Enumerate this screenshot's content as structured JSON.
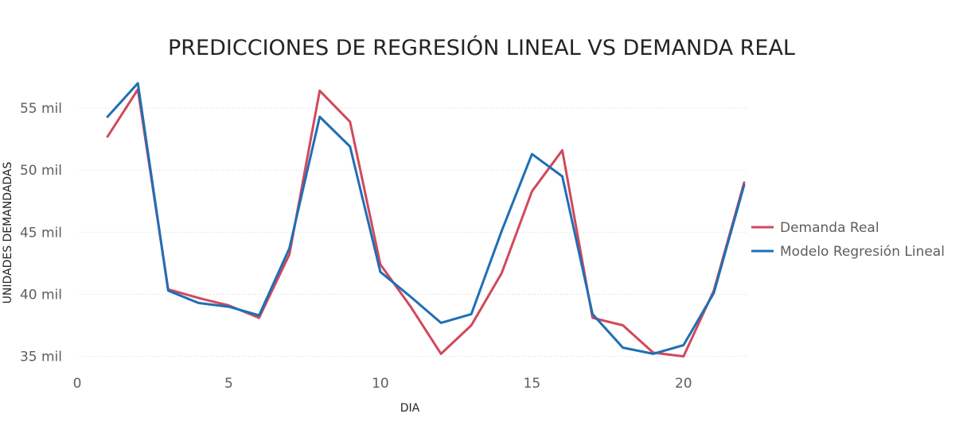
{
  "chart_data": {
    "type": "line",
    "title": "PREDICCIONES DE REGRESIÓN LINEAL VS DEMANDA REAL",
    "xlabel": "DIA",
    "ylabel": "UNIDADES DEMANDADAS",
    "x": [
      1,
      2,
      3,
      4,
      5,
      6,
      7,
      8,
      9,
      10,
      11,
      12,
      13,
      14,
      15,
      16,
      17,
      18,
      19,
      20,
      21,
      22
    ],
    "xlim": [
      0,
      22
    ],
    "xticks": [
      0,
      5,
      10,
      15,
      20
    ],
    "xtick_labels": [
      "0",
      "5",
      "10",
      "15",
      "20"
    ],
    "ylim": [
      33500,
      57500
    ],
    "yticks": [
      35000,
      40000,
      45000,
      50000,
      55000
    ],
    "ytick_labels": [
      "35 mil",
      "40 mil",
      "45 mil",
      "50 mil",
      "55 mil"
    ],
    "grid": "horizontal dotted",
    "legend_position": "right",
    "series": [
      {
        "name": "Demanda Real",
        "color": "#d1495b",
        "values": [
          52700,
          56500,
          40400,
          39700,
          39100,
          38100,
          43200,
          56400,
          53900,
          42400,
          39000,
          35200,
          37500,
          41700,
          48300,
          51600,
          38100,
          37500,
          35300,
          35000,
          40300,
          49000
        ]
      },
      {
        "name": "Modelo Regresión Lineal",
        "color": "#1f6fb4",
        "values": [
          54300,
          57000,
          40300,
          39300,
          39000,
          38300,
          43700,
          54300,
          51900,
          41800,
          39800,
          37700,
          38400,
          45100,
          51300,
          49500,
          38400,
          35700,
          35200,
          35900,
          40100,
          48800
        ]
      }
    ]
  }
}
